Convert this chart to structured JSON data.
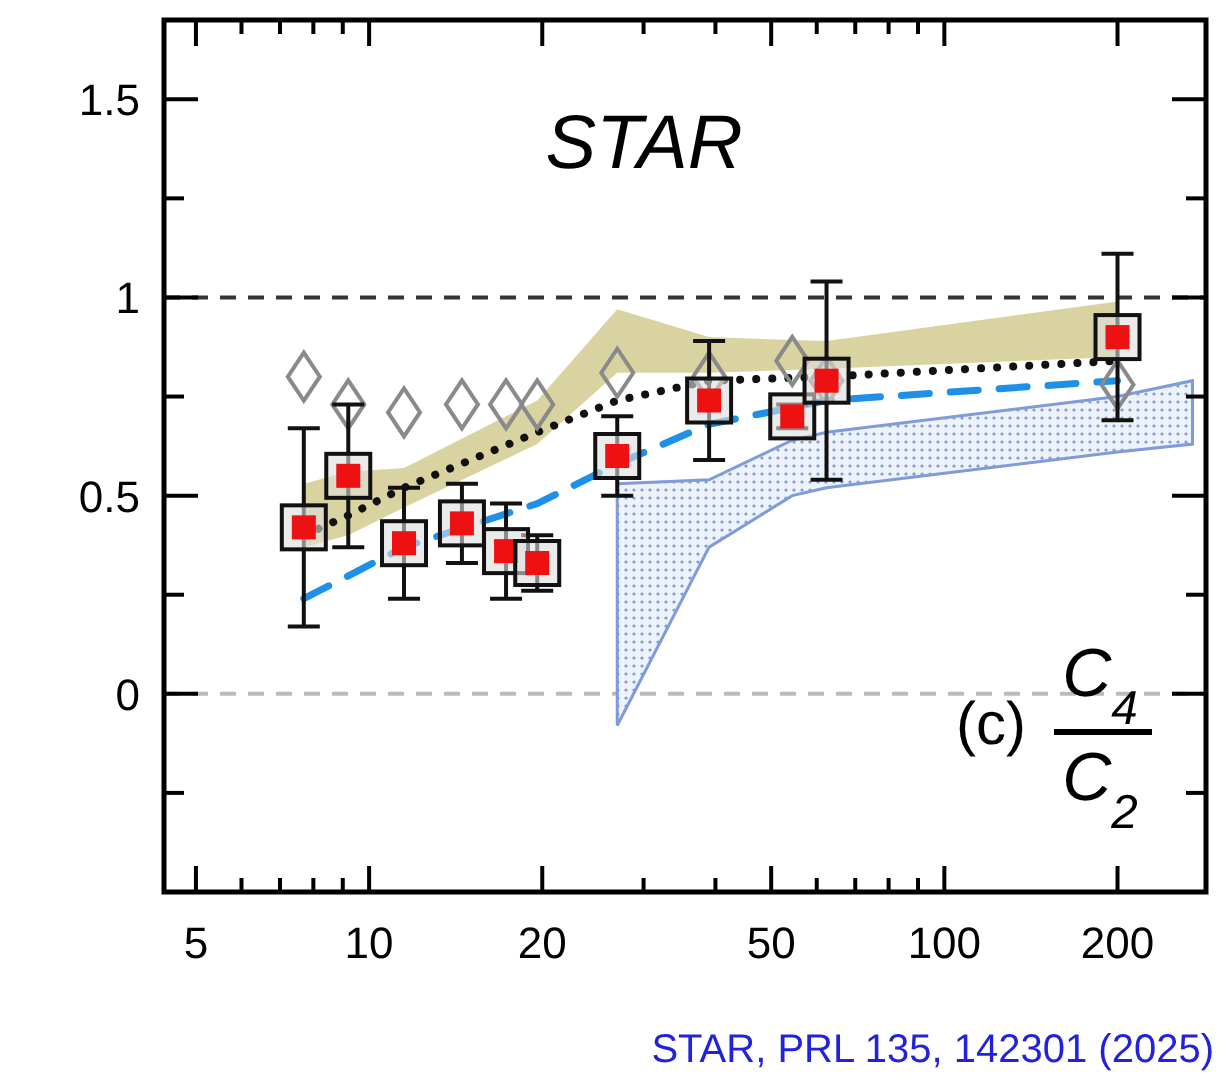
{
  "chart_data": {
    "type": "scatter",
    "annotations": [
      "STAR",
      "(c)",
      "C$_{4}$",
      "C$_{2}$",
      "STAR, PRL 135, 142301 (2025)"
    ],
    "log": "x",
    "xlim": [
      4.4,
      285
    ],
    "xticks": [
      5,
      {
        "value": 6,
        "label": null
      },
      {
        "value": 7,
        "label": null
      },
      {
        "value": 8,
        "label": null
      },
      {
        "value": 9,
        "label": null
      },
      10,
      20,
      {
        "value": 30,
        "label": null
      },
      {
        "value": 40,
        "label": null
      },
      50,
      {
        "value": 60,
        "label": null
      },
      {
        "value": 70,
        "label": null
      },
      {
        "value": 80,
        "label": null
      },
      {
        "value": 90,
        "label": null
      },
      100,
      200
    ],
    "ylim": [
      -0.5,
      1.7
    ],
    "yticks": [
      {
        "value": -0.25,
        "label": null
      },
      0,
      {
        "value": 0.25,
        "label": null
      },
      0.5,
      {
        "value": 0.75,
        "label": null
      },
      1,
      {
        "value": 1.25,
        "label": null
      },
      1.5
    ],
    "grid": false,
    "ref_lines": [
      {
        "axis": "y",
        "value": 1,
        "color": "#333333",
        "line_style": "dashed"
      },
      {
        "axis": "y",
        "value": 0,
        "color": "#bbbbbb",
        "line_style": "dashed"
      }
    ],
    "series": [
      {
        "type": "area",
        "color": "#cfc88a",
        "x": [
          7.7,
          9.2,
          11.5,
          19.6,
          27,
          39,
          62.4,
          200
        ],
        "values": [
          null,
          null,
          null,
          null,
          null,
          null,
          null,
          null
        ],
        "lower": [
          0.37,
          0.4,
          0.47,
          0.63,
          0.81,
          0.81,
          0.82,
          0.85
        ],
        "upper": [
          0.53,
          0.56,
          0.57,
          0.74,
          0.97,
          0.9,
          0.89,
          0.99
        ]
      },
      {
        "type": "area",
        "color": "#7f9bd9",
        "x": [
          27,
          39,
          54.4,
          62.4,
          200,
          270
        ],
        "values": [
          null,
          null,
          null,
          null,
          null,
          null
        ],
        "lower": [
          -0.08,
          0.37,
          0.5,
          0.52,
          0.61,
          0.63
        ],
        "upper": [
          0.53,
          0.54,
          0.64,
          0.66,
          0.75,
          0.79
        ]
      },
      {
        "type": "line",
        "color": "#111111",
        "line_style": "dotted",
        "x": [
          7.7,
          9.2,
          11.5,
          19.6,
          27,
          39,
          62.4,
          200
        ],
        "values": [
          0.4,
          0.45,
          0.52,
          0.66,
          0.74,
          0.79,
          0.8,
          0.84
        ]
      },
      {
        "type": "line",
        "color": "#1e90e8",
        "line_style": "dashed",
        "x": [
          7.7,
          11.5,
          19.6,
          27,
          39,
          62.4,
          200
        ],
        "values": [
          0.24,
          0.37,
          0.48,
          0.58,
          0.68,
          0.74,
          0.79
        ]
      },
      {
        "type": "scatter",
        "color": "#8a8a8a",
        "marker": "diamond",
        "x": [
          7.7,
          9.2,
          11.5,
          14.5,
          17.3,
          19.6,
          27,
          39,
          54.4,
          62.4,
          200
        ],
        "values": [
          0.8,
          0.73,
          0.71,
          0.73,
          0.73,
          0.73,
          0.81,
          0.8,
          0.84,
          0.79,
          0.78
        ]
      },
      {
        "type": "scatter",
        "color": "#ee1111",
        "marker": "square",
        "x": [
          7.7,
          9.2,
          11.5,
          14.5,
          17.3,
          19.6,
          27,
          39,
          54.4,
          62.4,
          200
        ],
        "values": [
          0.42,
          0.55,
          0.38,
          0.43,
          0.36,
          0.33,
          0.6,
          0.74,
          0.7,
          0.79,
          0.9
        ],
        "errors": [
          0.25,
          0.18,
          0.14,
          0.1,
          0.12,
          0.07,
          0.1,
          0.15,
          0.03,
          0.25,
          0.21
        ]
      }
    ]
  }
}
